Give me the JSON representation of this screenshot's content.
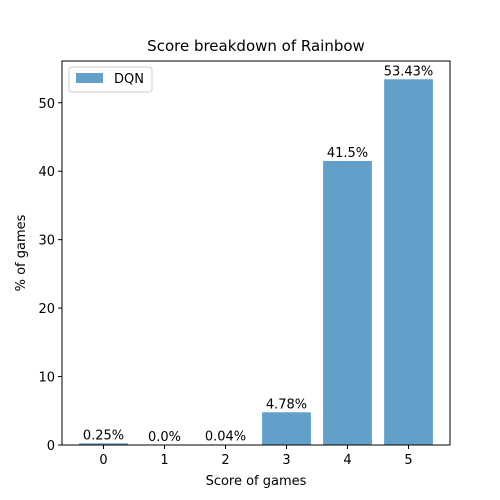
{
  "chart_data": {
    "type": "bar",
    "title": "Score breakdown of Rainbow",
    "xlabel": "Score of games",
    "ylabel": "% of games",
    "categories": [
      "0",
      "1",
      "2",
      "3",
      "4",
      "5"
    ],
    "series": [
      {
        "name": "DQN",
        "values": [
          0.25,
          0.0,
          0.04,
          4.78,
          41.5,
          53.43
        ],
        "labels": [
          "0.25%",
          "0.0%",
          "0.04%",
          "4.78%",
          "41.5%",
          "53.43%"
        ],
        "color": "#62a0ca"
      }
    ],
    "ylim": [
      0,
      56.1
    ],
    "yticks": [
      0,
      10,
      20,
      30,
      40,
      50
    ],
    "legend": "top-left",
    "grid": false
  }
}
